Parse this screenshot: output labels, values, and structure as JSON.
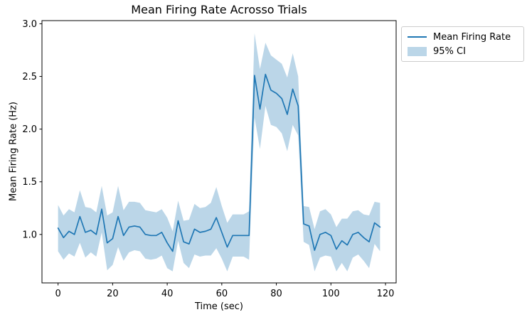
{
  "figure": {
    "title": "Mean Firing Rate Acrosso Trials",
    "xlabel": "Time (sec)",
    "ylabel": "Mean Firing Rate (Hz)"
  },
  "legend": {
    "entries": [
      {
        "label": "Mean Firing Rate",
        "swatch": "line"
      },
      {
        "label": "95% CI",
        "swatch": "patch"
      }
    ]
  },
  "colors": {
    "line": "#1f77b4",
    "band_fill": "#1f77b4",
    "band_opacity": 0.3,
    "spine": "#000000",
    "legend_border": "#cccccc",
    "background": "#ffffff"
  },
  "chart_data": {
    "type": "line",
    "title": "Mean Firing Rate Acrosso Trials",
    "xlabel": "Time (sec)",
    "ylabel": "Mean Firing Rate (Hz)",
    "grid": false,
    "legend_position": "upper right outside axes",
    "xlim": [
      -5.9,
      123.9
    ],
    "ylim": [
      0.54,
      3.03
    ],
    "xticks": [
      0,
      20,
      40,
      60,
      80,
      100,
      120
    ],
    "xtick_labels": [
      "0",
      "20",
      "40",
      "60",
      "80",
      "100",
      "120"
    ],
    "yticks": [
      1.0,
      1.5,
      2.0,
      2.5,
      3.0
    ],
    "ytick_labels": [
      "1.0",
      "1.5",
      "2.0",
      "2.5",
      "3.0"
    ],
    "x": [
      0,
      2,
      4,
      6,
      8,
      10,
      12,
      14,
      16,
      18,
      20,
      22,
      24,
      26,
      28,
      30,
      32,
      34,
      36,
      38,
      40,
      42,
      44,
      46,
      48,
      50,
      52,
      54,
      56,
      58,
      60,
      62,
      64,
      66,
      68,
      70,
      72,
      74,
      76,
      78,
      80,
      82,
      84,
      86,
      88,
      90,
      92,
      94,
      96,
      98,
      100,
      102,
      104,
      106,
      108,
      110,
      112,
      114,
      116,
      118
    ],
    "series": [
      {
        "name": "Mean Firing Rate",
        "values": [
          1.06,
          0.97,
          1.03,
          1.0,
          1.17,
          1.02,
          1.04,
          1.0,
          1.24,
          0.92,
          0.96,
          1.17,
          0.99,
          1.07,
          1.08,
          1.07,
          1.0,
          0.99,
          0.99,
          1.02,
          0.92,
          0.84,
          1.13,
          0.93,
          0.91,
          1.05,
          1.02,
          1.03,
          1.05,
          1.16,
          1.02,
          0.88,
          0.99,
          0.99,
          0.99,
          0.99,
          2.51,
          2.19,
          2.52,
          2.37,
          2.34,
          2.29,
          2.14,
          2.38,
          2.22,
          1.1,
          1.08,
          0.85,
          1.0,
          1.02,
          0.99,
          0.86,
          0.94,
          0.9,
          1.0,
          1.02,
          0.97,
          0.93,
          1.11,
          1.07
        ]
      },
      {
        "name": "95% CI upper",
        "values": [
          1.28,
          1.18,
          1.24,
          1.21,
          1.42,
          1.26,
          1.25,
          1.21,
          1.46,
          1.18,
          1.21,
          1.46,
          1.23,
          1.31,
          1.31,
          1.3,
          1.23,
          1.22,
          1.21,
          1.24,
          1.16,
          1.03,
          1.32,
          1.13,
          1.14,
          1.29,
          1.25,
          1.26,
          1.3,
          1.45,
          1.27,
          1.11,
          1.19,
          1.19,
          1.19,
          1.22,
          2.91,
          2.57,
          2.82,
          2.7,
          2.66,
          2.62,
          2.49,
          2.72,
          2.5,
          1.27,
          1.26,
          1.05,
          1.22,
          1.24,
          1.19,
          1.07,
          1.15,
          1.15,
          1.22,
          1.23,
          1.19,
          1.18,
          1.31,
          1.3
        ]
      },
      {
        "name": "95% CI lower",
        "values": [
          0.84,
          0.76,
          0.82,
          0.79,
          0.92,
          0.78,
          0.83,
          0.79,
          1.02,
          0.66,
          0.71,
          0.88,
          0.75,
          0.83,
          0.85,
          0.84,
          0.77,
          0.76,
          0.77,
          0.8,
          0.68,
          0.65,
          0.94,
          0.73,
          0.68,
          0.81,
          0.79,
          0.8,
          0.8,
          0.87,
          0.77,
          0.65,
          0.79,
          0.79,
          0.79,
          0.76,
          2.11,
          1.81,
          2.22,
          2.04,
          2.02,
          1.96,
          1.79,
          2.04,
          1.94,
          0.93,
          0.9,
          0.65,
          0.78,
          0.8,
          0.79,
          0.65,
          0.73,
          0.65,
          0.78,
          0.81,
          0.75,
          0.68,
          0.91,
          0.84
        ]
      }
    ]
  }
}
